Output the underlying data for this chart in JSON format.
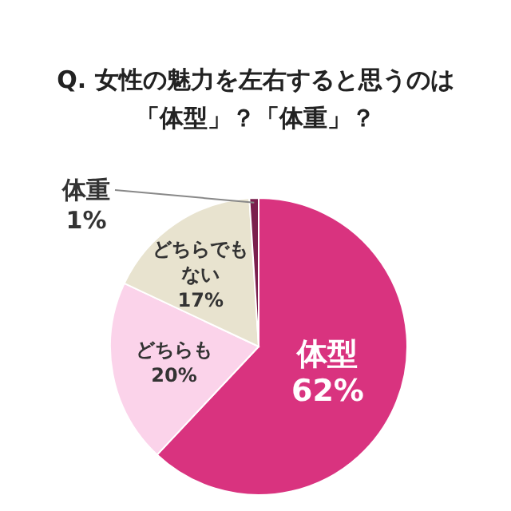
{
  "chart_data": {
    "type": "pie",
    "title": "Q. 女性の魅力を左右すると思うのは「体型」？「体重」？",
    "categories": [
      "体型",
      "どちらも",
      "どちらでもない",
      "体重"
    ],
    "values": [
      62,
      20,
      17,
      1
    ],
    "colors": [
      "#d9337f",
      "#fbd3ea",
      "#e8e3cf",
      "#7b1f4e"
    ],
    "value_labels": [
      "62%",
      "20%",
      "17%",
      "1%"
    ]
  }
}
